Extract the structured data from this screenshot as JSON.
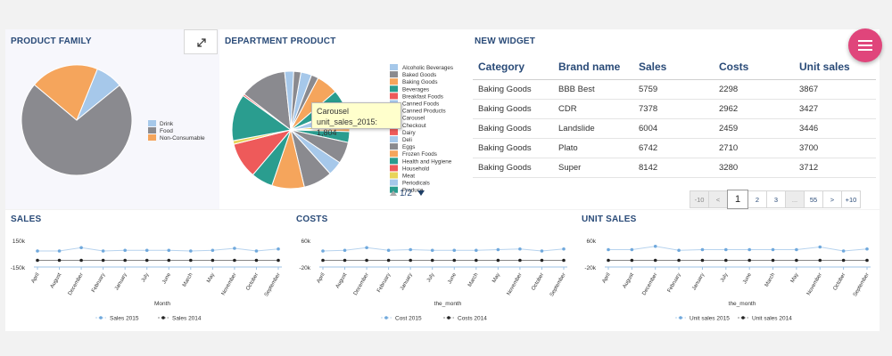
{
  "product_family": {
    "title": "PRODUCT FAMILY",
    "legend": [
      {
        "label": "Drink",
        "color": "#a6c8ea",
        "value": 8
      },
      {
        "label": "Food",
        "color": "#8a8a8f",
        "value": 72
      },
      {
        "label": "Non-Consumable",
        "color": "#f5a55c",
        "value": 20
      }
    ]
  },
  "department_product": {
    "title": "DEPARTMENT PRODUCT",
    "legend": [
      {
        "label": "Alcoholic Beverages",
        "color": "#a6c8ea"
      },
      {
        "label": "Baked Goods",
        "color": "#8a8a8f"
      },
      {
        "label": "Baking Goods",
        "color": "#f5a55c"
      },
      {
        "label": "Beverages",
        "color": "#2a9d8f"
      },
      {
        "label": "Breakfast Foods",
        "color": "#ee5a5a"
      },
      {
        "label": "Canned Foods",
        "color": "#a6c8ea"
      },
      {
        "label": "Canned Products",
        "color": "#8a8a8f"
      },
      {
        "label": "Carousel",
        "color": "#f5a55c"
      },
      {
        "label": "Checkout",
        "color": "#2a9d8f"
      },
      {
        "label": "Dairy",
        "color": "#ee5a5a"
      },
      {
        "label": "Deli",
        "color": "#a6c8ea"
      },
      {
        "label": "Eggs",
        "color": "#8a8a8f"
      },
      {
        "label": "Frozen Foods",
        "color": "#f5a55c"
      },
      {
        "label": "Health and Hygiene",
        "color": "#2a9d8f"
      },
      {
        "label": "Household",
        "color": "#ee5a5a"
      },
      {
        "label": "Meat",
        "color": "#e8d45a"
      },
      {
        "label": "Periodicals",
        "color": "#a6c8ea"
      },
      {
        "label": "Produce",
        "color": "#2a9d8f"
      }
    ],
    "slices": [
      {
        "v": 3,
        "c": "#a6c8ea"
      },
      {
        "v": 2,
        "c": "#8a8a8f"
      },
      {
        "v": 6,
        "c": "#f5a55c"
      },
      {
        "v": 5,
        "c": "#2a9d8f"
      },
      {
        "v": 0.6,
        "c": "#ee5a5a"
      },
      {
        "v": 4,
        "c": "#a6c8ea"
      },
      {
        "v": 1.5,
        "c": "#e8d45a"
      },
      {
        "v": 0.8,
        "c": "#f5a55c"
      },
      {
        "v": 3,
        "c": "#2a9d8f"
      },
      {
        "v": 6,
        "c": "#8a8a8f"
      },
      {
        "v": 4,
        "c": "#a6c8ea"
      },
      {
        "v": 8,
        "c": "#8a8a8f"
      },
      {
        "v": 9,
        "c": "#f5a55c"
      },
      {
        "v": 6,
        "c": "#2a9d8f"
      },
      {
        "v": 10,
        "c": "#ee5a5a"
      },
      {
        "v": 1,
        "c": "#e8d45a"
      },
      {
        "v": 13,
        "c": "#2a9d8f"
      },
      {
        "v": 0.5,
        "c": "#ee5a5a"
      },
      {
        "v": 13,
        "c": "#8a8a8f"
      },
      {
        "v": 2.5,
        "c": "#a6c8ea"
      },
      {
        "v": 2,
        "c": "#8a8a8f"
      }
    ],
    "pager": "1/2",
    "tooltip": {
      "name": "Carousel",
      "metric": "unit_sales_2015: 1,804"
    }
  },
  "new_widget": {
    "title": "NEW WIDGET",
    "columns": [
      "Category",
      "Brand name",
      "Sales",
      "Costs",
      "Unit sales"
    ],
    "rows": [
      [
        "Baking Goods",
        "BBB Best",
        "5759",
        "2298",
        "3867"
      ],
      [
        "Baking Goods",
        "CDR",
        "7378",
        "2962",
        "3427"
      ],
      [
        "Baking Goods",
        "Landslide",
        "6004",
        "2459",
        "3446"
      ],
      [
        "Baking Goods",
        "Plato",
        "6742",
        "2710",
        "3700"
      ],
      [
        "Baking Goods",
        "Super",
        "8142",
        "3280",
        "3712"
      ]
    ],
    "pagination": [
      "-10",
      "<",
      "1",
      "2",
      "3",
      "...",
      "55",
      ">",
      "+10"
    ]
  },
  "months": [
    "April",
    "August",
    "December",
    "February",
    "January",
    "July",
    "June",
    "March",
    "May",
    "November",
    "October",
    "September"
  ],
  "line_charts": [
    {
      "title": "SALES",
      "ymax": "150k",
      "ymin": "-150k",
      "xlabel": "Month",
      "series": [
        {
          "name": "Sales 2015",
          "color": "#6fa8dc"
        },
        {
          "name": "Sales 2014",
          "color": "#222222"
        }
      ]
    },
    {
      "title": "COSTS",
      "ymax": "60k",
      "ymin": "-20k",
      "xlabel": "the_month",
      "series": [
        {
          "name": "Cost 2015",
          "color": "#6fa8dc"
        },
        {
          "name": "Costs 2014",
          "color": "#222222"
        }
      ]
    },
    {
      "title": "UNIT SALES",
      "ymax": "60k",
      "ymin": "-20k",
      "xlabel": "the_month",
      "series": [
        {
          "name": "Unit sales 2015",
          "color": "#6fa8dc"
        },
        {
          "name": "Unit sales 2014",
          "color": "#222222"
        }
      ]
    }
  ],
  "chart_data": [
    {
      "type": "pie",
      "title": "PRODUCT FAMILY",
      "categories": [
        "Drink",
        "Food",
        "Non-Consumable"
      ],
      "values": [
        8,
        72,
        20
      ]
    },
    {
      "type": "pie",
      "title": "DEPARTMENT PRODUCT"
    },
    {
      "type": "line",
      "title": "SALES",
      "xlabel": "Month",
      "ylim": [
        "-150k",
        "150k"
      ],
      "categories": [
        "April",
        "August",
        "December",
        "February",
        "January",
        "July",
        "June",
        "March",
        "May",
        "November",
        "October",
        "September"
      ],
      "series": [
        {
          "name": "Sales 2015",
          "values": [
            0.2,
            0.2,
            0.45,
            0.2,
            0.25,
            0.25,
            0.25,
            0.2,
            0.25,
            0.4,
            0.2,
            0.35
          ]
        },
        {
          "name": "Sales 2014",
          "values": [
            -0.5,
            -0.5,
            -0.5,
            -0.5,
            -0.5,
            -0.5,
            -0.5,
            -0.5,
            -0.5,
            -0.5,
            -0.5,
            -0.5
          ]
        }
      ]
    },
    {
      "type": "line",
      "title": "COSTS",
      "xlabel": "the_month",
      "ylim": [
        "-20k",
        "60k"
      ],
      "categories": [
        "April",
        "August",
        "December",
        "February",
        "January",
        "July",
        "June",
        "March",
        "May",
        "November",
        "October",
        "September"
      ],
      "series": [
        {
          "name": "Cost 2015",
          "values": [
            0.2,
            0.25,
            0.45,
            0.25,
            0.3,
            0.25,
            0.25,
            0.25,
            0.3,
            0.35,
            0.2,
            0.35
          ]
        },
        {
          "name": "Costs 2014",
          "values": [
            -0.5,
            -0.5,
            -0.5,
            -0.5,
            -0.5,
            -0.5,
            -0.5,
            -0.5,
            -0.5,
            -0.5,
            -0.5,
            -0.5
          ]
        }
      ]
    },
    {
      "type": "line",
      "title": "UNIT SALES",
      "xlabel": "the_month",
      "ylim": [
        "-20k",
        "60k"
      ],
      "categories": [
        "April",
        "August",
        "December",
        "February",
        "January",
        "July",
        "June",
        "March",
        "May",
        "November",
        "October",
        "September"
      ],
      "series": [
        {
          "name": "Unit sales 2015",
          "values": [
            0.3,
            0.3,
            0.55,
            0.25,
            0.3,
            0.3,
            0.3,
            0.3,
            0.3,
            0.5,
            0.2,
            0.35
          ]
        },
        {
          "name": "Unit sales 2014",
          "values": [
            -0.5,
            -0.5,
            -0.5,
            -0.5,
            -0.5,
            -0.5,
            -0.5,
            -0.5,
            -0.5,
            -0.5,
            -0.5,
            -0.5
          ]
        }
      ]
    }
  ]
}
